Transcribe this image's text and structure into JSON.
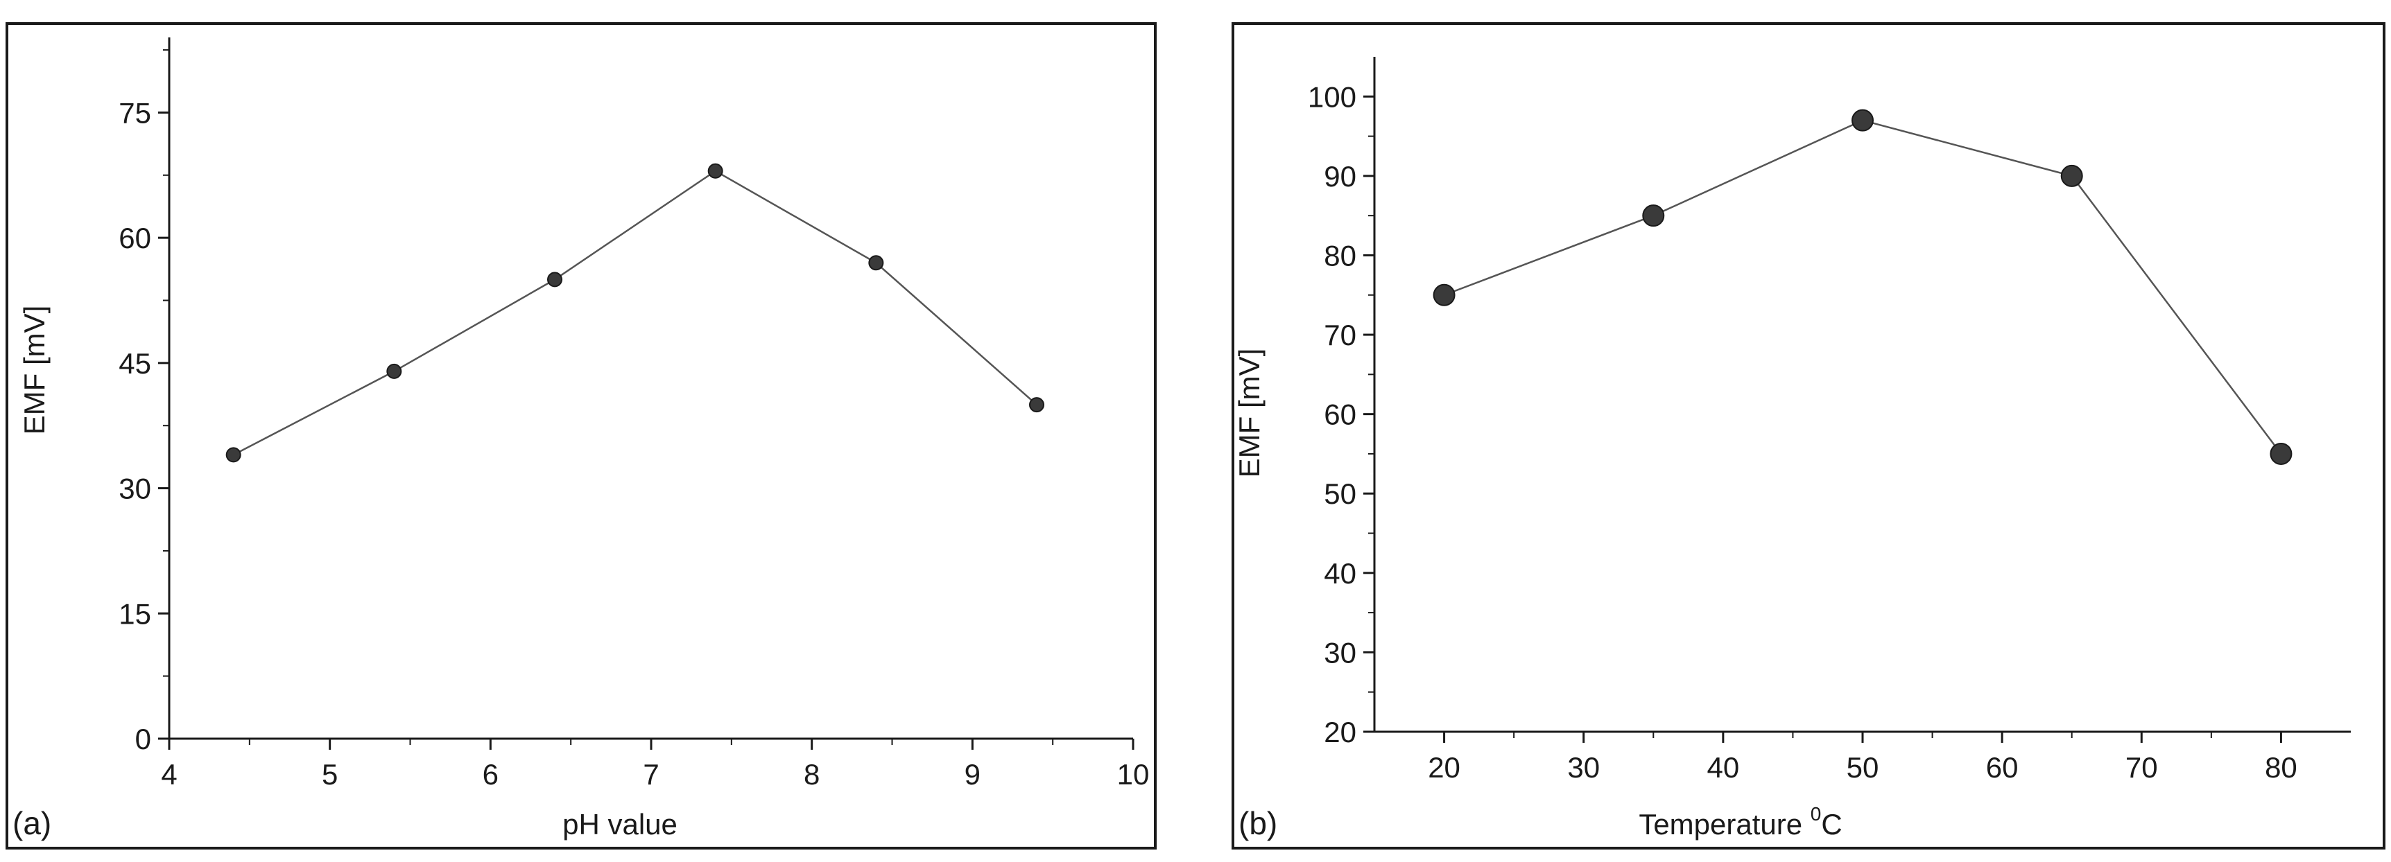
{
  "chart_data": [
    {
      "type": "line",
      "panel_label": "(a)",
      "title": "",
      "xlabel": "pH value",
      "ylabel": "EMF [mV]",
      "xlim": [
        4,
        10
      ],
      "ylim": [
        0,
        84
      ],
      "x_ticks": [
        4,
        5,
        6,
        7,
        8,
        9,
        10
      ],
      "y_ticks": [
        0,
        15,
        30,
        45,
        60,
        75
      ],
      "grid": false,
      "legend": "none",
      "marker_color": "#3a3a3a",
      "line_color": "#555555",
      "series": [
        {
          "x": [
            4.4,
            5.4,
            6.4,
            7.4,
            8.4,
            9.4
          ],
          "values": [
            34,
            44,
            55,
            68,
            57,
            40
          ]
        }
      ]
    },
    {
      "type": "line",
      "panel_label": "(b)",
      "title": "",
      "xlabel": "Temperature ",
      "xlabel_sup": "0",
      "xlabel_unit": "C",
      "ylabel": "EMF [mV]",
      "xlim": [
        15,
        85
      ],
      "ylim": [
        20,
        105
      ],
      "x_ticks": [
        20,
        30,
        40,
        50,
        60,
        70,
        80
      ],
      "y_ticks": [
        20,
        30,
        40,
        50,
        60,
        70,
        80,
        90,
        100
      ],
      "grid": false,
      "legend": "none",
      "marker_color": "#3a3a3a",
      "line_color": "#555555",
      "series": [
        {
          "x": [
            20,
            35,
            50,
            65,
            80
          ],
          "values": [
            75,
            85,
            97,
            90,
            55
          ]
        }
      ]
    }
  ]
}
